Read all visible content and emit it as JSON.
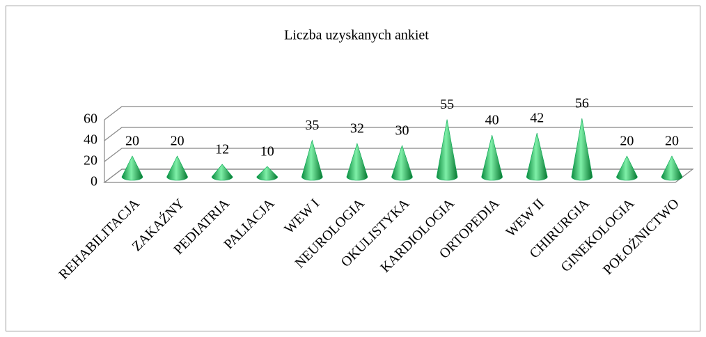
{
  "chart_data": {
    "type": "cone",
    "title": "Liczba uzyskanych ankiet",
    "categories": [
      "REHABILITACJA",
      "ZAKAŹNY",
      "PEDIATRIA",
      "PALIACJA",
      "WEW I",
      "NEUROLOGIA",
      "OKULISTYKA",
      "KARDIOLOGIA",
      "ORTOPEDIA",
      "WEW II",
      "CHIRURGIA",
      "GINEKOLOGIA",
      "POŁOŻNICTWO"
    ],
    "values": [
      20,
      20,
      12,
      10,
      35,
      32,
      30,
      55,
      40,
      42,
      56,
      20,
      20
    ],
    "color": "#00a650",
    "ylim": [
      0,
      60
    ],
    "yticks": [
      0,
      20,
      40,
      60
    ],
    "grid": true
  }
}
